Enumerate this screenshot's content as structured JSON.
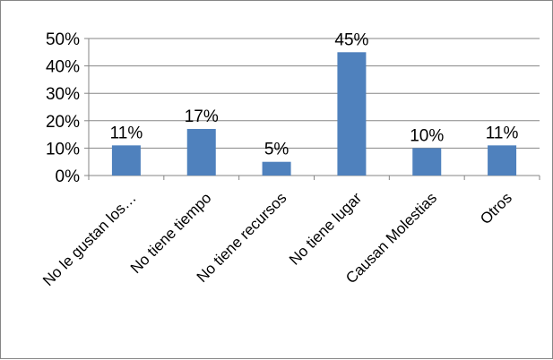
{
  "chart_data": {
    "type": "bar",
    "categories": [
      "No le gustan los…",
      "No tiene tiempo",
      "No tiene recursos",
      "No tiene lugar",
      "Causan Molestias",
      "Otros"
    ],
    "series": [
      {
        "values": [
          11,
          17,
          5,
          45,
          10,
          11
        ]
      }
    ],
    "data_labels": [
      "11%",
      "17%",
      "5%",
      "45%",
      "10%",
      "11%"
    ],
    "y_ticks": [
      "0%",
      "10%",
      "20%",
      "30%",
      "40%",
      "50%"
    ],
    "ylim": [
      0,
      50
    ],
    "grid": true,
    "legend": "none",
    "colors": {
      "bar": "#4F81BD",
      "grid": "#868686",
      "axis": "#868686"
    }
  }
}
